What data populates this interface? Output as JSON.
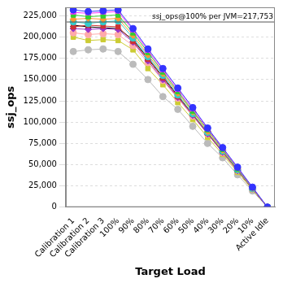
{
  "chart_data": {
    "type": "line",
    "x_label": "Target Load",
    "y_label": "ssj_ops",
    "categories": [
      "Calibration 1",
      "Calibration 2",
      "Calibration 3",
      "100%",
      "90%",
      "80%",
      "70%",
      "60%",
      "50%",
      "40%",
      "30%",
      "20%",
      "10%",
      "Active Idle"
    ],
    "ylim": [
      0,
      235000
    ],
    "yticks": [
      0,
      {
        "value": 25000,
        "label": "25,000"
      },
      {
        "value": 50000,
        "label": "50,000"
      },
      {
        "value": 75000,
        "label": "75,000"
      },
      {
        "value": 100000,
        "label": "100,000"
      },
      {
        "value": 125000,
        "label": "125,000"
      },
      {
        "value": 150000,
        "label": "150,000"
      },
      {
        "value": 175000,
        "label": "175,000"
      },
      {
        "value": 200000,
        "label": "200,000"
      },
      {
        "value": 225000,
        "label": "225,000"
      }
    ],
    "grid": true,
    "annotations": [
      {
        "text": "ssj_ops@100% per JVM=217,753",
        "y": 217753
      }
    ],
    "series": [
      {
        "color": "#3333ff",
        "marker": "circle",
        "values": [
          232000,
          230000,
          231000,
          232000,
          210000,
          186000,
          163000,
          140000,
          117000,
          93000,
          70000,
          47000,
          23500,
          0
        ]
      },
      {
        "color": "#ff33ff",
        "marker": "triangle",
        "values": [
          229000,
          228000,
          229000,
          230000,
          208000,
          184000,
          161000,
          138000,
          115000,
          92000,
          69000,
          46000,
          23000,
          0
        ]
      },
      {
        "color": "#33cc33",
        "marker": "square",
        "values": [
          226000,
          224000,
          225000,
          226000,
          205000,
          182000,
          159000,
          136000,
          113000,
          91000,
          68000,
          45000,
          22800,
          0
        ]
      },
      {
        "color": "#ff9933",
        "marker": "diamond",
        "values": [
          221000,
          222000,
          221000,
          222000,
          202000,
          179000,
          157000,
          134000,
          112000,
          89000,
          67000,
          45000,
          22400,
          0
        ]
      },
      {
        "color": "#33cccc",
        "marker": "circle",
        "values": [
          218000,
          216000,
          218000,
          219000,
          199000,
          177000,
          155000,
          132000,
          110000,
          88000,
          66000,
          44000,
          22000,
          0
        ]
      },
      {
        "color": "#cc3333",
        "marker": "square",
        "values": [
          212000,
          214000,
          213000,
          212000,
          195000,
          174000,
          152000,
          130000,
          109000,
          87000,
          65000,
          43000,
          21700,
          0
        ]
      },
      {
        "color": "#9933cc",
        "marker": "diamond",
        "values": [
          210000,
          209000,
          210000,
          209000,
          194000,
          172000,
          150000,
          129000,
          108000,
          86000,
          64500,
          43000,
          21500,
          0
        ]
      },
      {
        "color": "#000000",
        "marker": "triangle",
        "values": [
          214000,
          212000,
          211000,
          210000,
          197000,
          175000,
          153000,
          131000,
          109000,
          87000,
          65000,
          43500,
          21800,
          0
        ]
      },
      {
        "color": "#ffaaaa",
        "marker": "circle",
        "values": [
          205000,
          203000,
          204000,
          203000,
          190000,
          170000,
          149000,
          128000,
          107000,
          86000,
          64000,
          43000,
          21500,
          0
        ]
      },
      {
        "color": "#cccc33",
        "marker": "square",
        "values": [
          200000,
          196000,
          197000,
          196000,
          185000,
          163000,
          144000,
          123000,
          103000,
          82000,
          62000,
          41000,
          20500,
          0
        ]
      },
      {
        "color": "#bbbbbb",
        "marker": "circle",
        "values": [
          183000,
          185000,
          186000,
          183000,
          168000,
          150000,
          130000,
          115000,
          95000,
          75000,
          58000,
          38000,
          19000,
          0
        ]
      }
    ]
  }
}
